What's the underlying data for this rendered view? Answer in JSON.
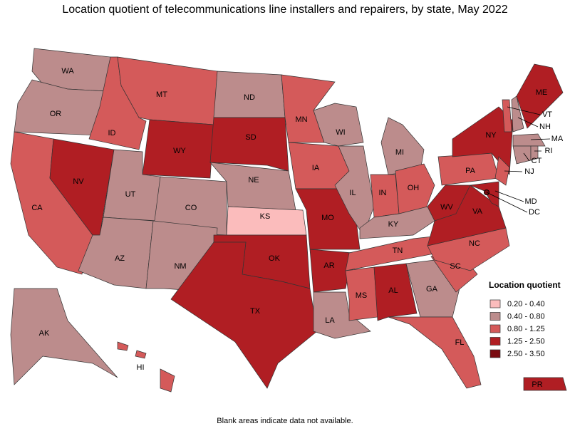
{
  "title": "Location quotient of telecommunications line installers and repairers, by state, May 2022",
  "footnote": "Blank areas indicate data not available.",
  "legend": {
    "title": "Location quotient",
    "bins": [
      {
        "label": "0.20 - 0.40",
        "color": "#fbbcbc"
      },
      {
        "label": "0.40 - 0.80",
        "color": "#bc8c8c"
      },
      {
        "label": "0.80 - 1.25",
        "color": "#d45a5a"
      },
      {
        "label": "1.25 - 2.50",
        "color": "#b01e23"
      },
      {
        "label": "2.50 - 3.50",
        "color": "#7a0a10"
      }
    ]
  },
  "map": {
    "states": [
      {
        "label": "WA",
        "bin": 1
      },
      {
        "label": "OR",
        "bin": 1
      },
      {
        "label": "CA",
        "bin": 2
      },
      {
        "label": "NV",
        "bin": 3
      },
      {
        "label": "ID",
        "bin": 2
      },
      {
        "label": "MT",
        "bin": 2
      },
      {
        "label": "WY",
        "bin": 3
      },
      {
        "label": "UT",
        "bin": 1
      },
      {
        "label": "CO",
        "bin": 1
      },
      {
        "label": "AZ",
        "bin": 1
      },
      {
        "label": "NM",
        "bin": 1
      },
      {
        "label": "ND",
        "bin": 1
      },
      {
        "label": "SD",
        "bin": 3
      },
      {
        "label": "NE",
        "bin": 1
      },
      {
        "label": "KS",
        "bin": 0
      },
      {
        "label": "OK",
        "bin": 3
      },
      {
        "label": "TX",
        "bin": 3
      },
      {
        "label": "MN",
        "bin": 2
      },
      {
        "label": "IA",
        "bin": 2
      },
      {
        "label": "MO",
        "bin": 3
      },
      {
        "label": "AR",
        "bin": 3
      },
      {
        "label": "LA",
        "bin": 1
      },
      {
        "label": "WI",
        "bin": 1
      },
      {
        "label": "IL",
        "bin": 1
      },
      {
        "label": "MI",
        "bin": 1
      },
      {
        "label": "IN",
        "bin": 2
      },
      {
        "label": "OH",
        "bin": 2
      },
      {
        "label": "KY",
        "bin": 1
      },
      {
        "label": "TN",
        "bin": 2
      },
      {
        "label": "MS",
        "bin": 2
      },
      {
        "label": "AL",
        "bin": 3
      },
      {
        "label": "GA",
        "bin": 1
      },
      {
        "label": "FL",
        "bin": 2
      },
      {
        "label": "SC",
        "bin": 2
      },
      {
        "label": "NC",
        "bin": 2
      },
      {
        "label": "VA",
        "bin": 3
      },
      {
        "label": "WV",
        "bin": 3
      },
      {
        "label": "PA",
        "bin": 2
      },
      {
        "label": "NY",
        "bin": 3
      },
      {
        "label": "NJ",
        "bin": 2
      },
      {
        "label": "MD",
        "bin": 3
      },
      {
        "label": "VT",
        "bin": 2
      },
      {
        "label": "NH",
        "bin": 1
      },
      {
        "label": "ME",
        "bin": 3
      },
      {
        "label": "MA",
        "bin": 1
      },
      {
        "label": "CT",
        "bin": 1
      },
      {
        "label": "RI",
        "bin": 1
      },
      {
        "label": "AK",
        "bin": 1
      },
      {
        "label": "HI",
        "bin": 2
      },
      {
        "label": "PR",
        "bin": 3
      },
      {
        "label": "DC",
        "bin": 4
      }
    ]
  }
}
